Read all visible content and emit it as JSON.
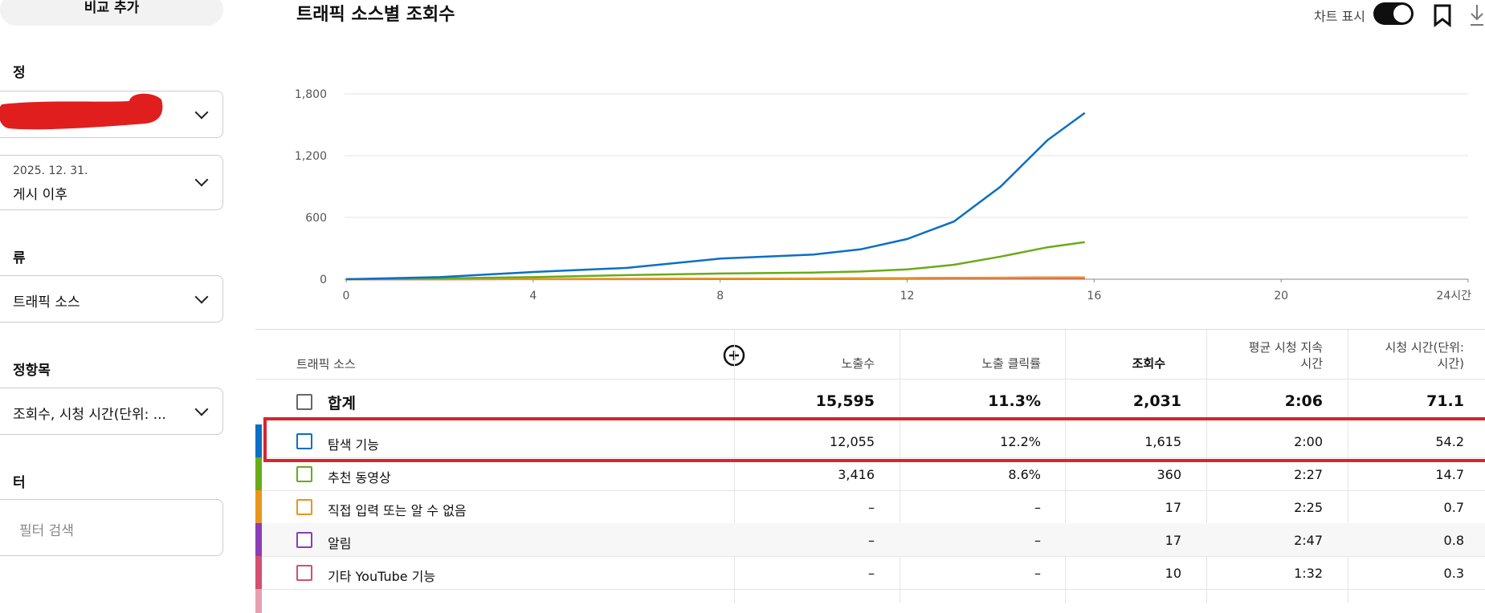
{
  "sidebar": {
    "compare_button": "비교 추가",
    "period_label": "정",
    "date_range": "2025. 12. 31.",
    "date_preset": "게시 이후",
    "type_label": "류",
    "type_value": "트래픽 소스",
    "metrics_label": "정항목",
    "metrics_value": "조회수, 시청 시간(단위: ...",
    "filter_label": "터",
    "filter_placeholder": "필터 검색"
  },
  "header": {
    "chart_toggle": "차트 표시"
  },
  "chart_data": {
    "type": "line",
    "title": "트래픽 소스별 조회수",
    "x": [
      0,
      2,
      4,
      6,
      8,
      10,
      11,
      12,
      13,
      14,
      15,
      15.8
    ],
    "series": [
      {
        "name": "탐색 기능",
        "color": "#0b6fc4",
        "values": [
          0,
          20,
          70,
          110,
          200,
          240,
          290,
          390,
          560,
          900,
          1350,
          1615
        ]
      },
      {
        "name": "추천 동영상",
        "color": "#6aab18",
        "values": [
          0,
          8,
          20,
          40,
          55,
          65,
          75,
          95,
          140,
          220,
          310,
          360
        ]
      },
      {
        "name": "직접 입력 또는 알 수 없음",
        "color": "#e8961c",
        "values": [
          0,
          1,
          2,
          3,
          5,
          7,
          9,
          11,
          13,
          15,
          16,
          17
        ]
      },
      {
        "name": "알림",
        "color": "#8b3cb7",
        "values": [
          0,
          1,
          2,
          3,
          4,
          6,
          8,
          10,
          12,
          14,
          16,
          17
        ]
      },
      {
        "name": "기타 YouTube 기능",
        "color": "#d4506e",
        "values": [
          0,
          0,
          1,
          1,
          2,
          3,
          4,
          5,
          6,
          8,
          9,
          10
        ]
      }
    ],
    "xlim": [
      0,
      24
    ],
    "xticks": [
      0,
      4,
      8,
      12,
      16,
      20,
      {
        "value": 24,
        "label": "24시간"
      }
    ],
    "ylim": [
      0,
      1800
    ],
    "yticks": [
      0,
      600,
      {
        "value": 1200,
        "label": "1,200"
      },
      {
        "value": 1800,
        "label": "1,800"
      }
    ],
    "grid": true
  },
  "table": {
    "columns": [
      "트래픽 소스",
      "노출수",
      "노출 클릭률",
      "조회수",
      "평균 시청 지속 시간",
      "시청 시간(단위: 시간)"
    ],
    "total": {
      "label": "합계",
      "cells": [
        "15,595",
        "11.3%",
        "2,031",
        "2:06",
        "71.1"
      ]
    },
    "rows": [
      {
        "cells": [
          "12,055",
          "12.2%",
          "1,615",
          "2:00",
          "54.2"
        ]
      },
      {
        "cells": [
          "3,416",
          "8.6%",
          "360",
          "2:27",
          "14.7"
        ]
      },
      {
        "cells": [
          "–",
          "–",
          "17",
          "2:25",
          "0.7"
        ]
      },
      {
        "cells": [
          "–",
          "–",
          "17",
          "2:47",
          "0.8"
        ]
      },
      {
        "cells": [
          "–",
          "–",
          "10",
          "1:32",
          "0.3"
        ]
      }
    ]
  }
}
